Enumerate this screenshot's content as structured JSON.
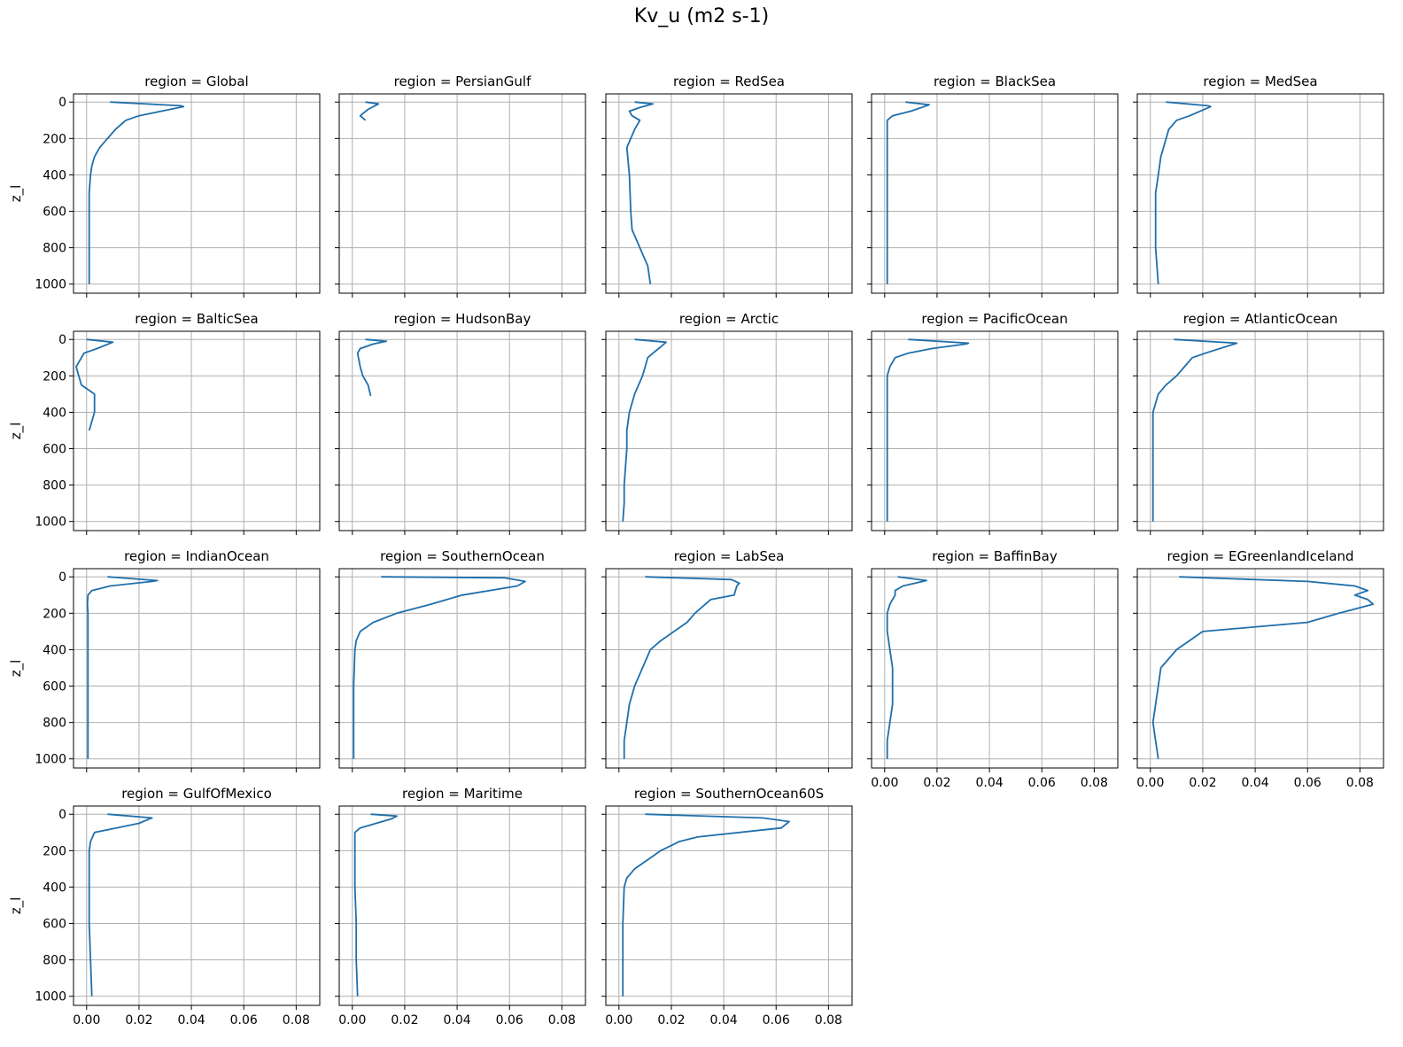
{
  "figure": {
    "title": "Kv_u (m2 s-1)"
  },
  "chart_data": {
    "type": "line",
    "layout": "facet-grid 4x5",
    "facet_prefix": "region = ",
    "ylabel": "z_l",
    "xlabel": "",
    "xlim": [
      -0.005,
      0.089
    ],
    "ylim": [
      1050,
      -45
    ],
    "xticks": [
      0.0,
      0.02,
      0.04,
      0.06,
      0.08
    ],
    "xtick_labels": [
      "0.00",
      "0.02",
      "0.04",
      "0.06",
      "0.08"
    ],
    "yticks": [
      0,
      200,
      400,
      600,
      800,
      1000
    ],
    "ytick_labels": [
      "0",
      "200",
      "400",
      "600",
      "800",
      "1000"
    ],
    "y_inverted": true,
    "grid": true,
    "line_color": "#1f6fab",
    "panels": [
      {
        "region": "Global",
        "points": [
          [
            0.009,
            0
          ],
          [
            0.036,
            20
          ],
          [
            0.037,
            25
          ],
          [
            0.02,
            75
          ],
          [
            0.015,
            100
          ],
          [
            0.011,
            150
          ],
          [
            0.008,
            200
          ],
          [
            0.005,
            250
          ],
          [
            0.003,
            300
          ],
          [
            0.002,
            350
          ],
          [
            0.0015,
            400
          ],
          [
            0.001,
            500
          ],
          [
            0.001,
            600
          ],
          [
            0.001,
            800
          ],
          [
            0.001,
            1000
          ]
        ]
      },
      {
        "region": "PersianGulf",
        "points": [
          [
            0.005,
            0
          ],
          [
            0.01,
            10
          ],
          [
            0.006,
            40
          ],
          [
            0.003,
            75
          ],
          [
            0.005,
            100
          ]
        ]
      },
      {
        "region": "RedSea",
        "points": [
          [
            0.006,
            0
          ],
          [
            0.013,
            10
          ],
          [
            0.008,
            30
          ],
          [
            0.004,
            50
          ],
          [
            0.005,
            75
          ],
          [
            0.008,
            100
          ],
          [
            0.006,
            150
          ],
          [
            0.003,
            250
          ],
          [
            0.004,
            400
          ],
          [
            0.0045,
            600
          ],
          [
            0.005,
            700
          ],
          [
            0.008,
            800
          ],
          [
            0.011,
            900
          ],
          [
            0.012,
            1000
          ]
        ]
      },
      {
        "region": "BlackSea",
        "points": [
          [
            0.008,
            0
          ],
          [
            0.017,
            15
          ],
          [
            0.01,
            50
          ],
          [
            0.003,
            75
          ],
          [
            0.001,
            100
          ],
          [
            0.001,
            200
          ],
          [
            0.001,
            400
          ],
          [
            0.001,
            600
          ],
          [
            0.001,
            800
          ],
          [
            0.001,
            1000
          ]
        ]
      },
      {
        "region": "MedSea",
        "points": [
          [
            0.006,
            0
          ],
          [
            0.022,
            20
          ],
          [
            0.023,
            25
          ],
          [
            0.015,
            75
          ],
          [
            0.01,
            100
          ],
          [
            0.007,
            150
          ],
          [
            0.005,
            250
          ],
          [
            0.004,
            300
          ],
          [
            0.003,
            400
          ],
          [
            0.002,
            500
          ],
          [
            0.002,
            600
          ],
          [
            0.002,
            700
          ],
          [
            0.002,
            800
          ],
          [
            0.003,
            1000
          ]
        ]
      },
      {
        "region": "BalticSea",
        "points": [
          [
            0.0,
            0
          ],
          [
            0.01,
            15
          ],
          [
            0.004,
            50
          ],
          [
            -0.001,
            75
          ],
          [
            -0.002,
            100
          ],
          [
            -0.004,
            150
          ],
          [
            -0.003,
            200
          ],
          [
            -0.002,
            250
          ],
          [
            0.003,
            300
          ],
          [
            0.003,
            400
          ],
          [
            0.001,
            500
          ]
        ]
      },
      {
        "region": "HudsonBay",
        "points": [
          [
            0.005,
            0
          ],
          [
            0.013,
            10
          ],
          [
            0.008,
            25
          ],
          [
            0.003,
            50
          ],
          [
            0.002,
            75
          ],
          [
            0.003,
            150
          ],
          [
            0.004,
            200
          ],
          [
            0.006,
            250
          ],
          [
            0.007,
            310
          ]
        ]
      },
      {
        "region": "Arctic",
        "points": [
          [
            0.006,
            0
          ],
          [
            0.018,
            15
          ],
          [
            0.016,
            40
          ],
          [
            0.013,
            75
          ],
          [
            0.011,
            100
          ],
          [
            0.01,
            150
          ],
          [
            0.009,
            200
          ],
          [
            0.006,
            300
          ],
          [
            0.004,
            400
          ],
          [
            0.003,
            500
          ],
          [
            0.003,
            600
          ],
          [
            0.002,
            800
          ],
          [
            0.002,
            900
          ],
          [
            0.0015,
            1000
          ]
        ]
      },
      {
        "region": "PacificOcean",
        "points": [
          [
            0.009,
            0
          ],
          [
            0.032,
            20
          ],
          [
            0.031,
            25
          ],
          [
            0.018,
            50
          ],
          [
            0.009,
            75
          ],
          [
            0.004,
            100
          ],
          [
            0.002,
            150
          ],
          [
            0.001,
            200
          ],
          [
            0.001,
            300
          ],
          [
            0.001,
            400
          ],
          [
            0.001,
            600
          ],
          [
            0.001,
            800
          ],
          [
            0.001,
            1000
          ]
        ]
      },
      {
        "region": "AtlanticOcean",
        "points": [
          [
            0.009,
            0
          ],
          [
            0.033,
            20
          ],
          [
            0.032,
            25
          ],
          [
            0.021,
            75
          ],
          [
            0.016,
            100
          ],
          [
            0.013,
            150
          ],
          [
            0.01,
            200
          ],
          [
            0.006,
            250
          ],
          [
            0.003,
            300
          ],
          [
            0.002,
            350
          ],
          [
            0.001,
            400
          ],
          [
            0.001,
            500
          ],
          [
            0.001,
            600
          ],
          [
            0.001,
            800
          ],
          [
            0.001,
            1000
          ]
        ]
      },
      {
        "region": "IndianOcean",
        "points": [
          [
            0.008,
            0
          ],
          [
            0.027,
            20
          ],
          [
            0.025,
            25
          ],
          [
            0.009,
            50
          ],
          [
            0.002,
            75
          ],
          [
            0.0005,
            100
          ],
          [
            0.0003,
            150
          ],
          [
            0.0005,
            200
          ],
          [
            0.0005,
            400
          ],
          [
            0.0005,
            600
          ],
          [
            0.0005,
            800
          ],
          [
            0.0005,
            1000
          ]
        ]
      },
      {
        "region": "SouthernOcean",
        "points": [
          [
            0.011,
            0
          ],
          [
            0.058,
            5
          ],
          [
            0.066,
            25
          ],
          [
            0.063,
            50
          ],
          [
            0.042,
            100
          ],
          [
            0.03,
            150
          ],
          [
            0.017,
            200
          ],
          [
            0.008,
            250
          ],
          [
            0.003,
            300
          ],
          [
            0.0015,
            350
          ],
          [
            0.001,
            400
          ],
          [
            0.0005,
            600
          ],
          [
            0.0005,
            800
          ],
          [
            0.0005,
            1000
          ]
        ]
      },
      {
        "region": "LabSea",
        "points": [
          [
            0.01,
            0
          ],
          [
            0.043,
            15
          ],
          [
            0.046,
            35
          ],
          [
            0.045,
            50
          ],
          [
            0.044,
            100
          ],
          [
            0.035,
            125
          ],
          [
            0.029,
            200
          ],
          [
            0.026,
            250
          ],
          [
            0.016,
            350
          ],
          [
            0.012,
            400
          ],
          [
            0.009,
            500
          ],
          [
            0.006,
            600
          ],
          [
            0.004,
            700
          ],
          [
            0.003,
            800
          ],
          [
            0.002,
            900
          ],
          [
            0.002,
            1000
          ]
        ]
      },
      {
        "region": "BaffinBay",
        "points": [
          [
            0.005,
            0
          ],
          [
            0.016,
            20
          ],
          [
            0.007,
            50
          ],
          [
            0.004,
            75
          ],
          [
            0.004,
            100
          ],
          [
            0.002,
            150
          ],
          [
            0.001,
            200
          ],
          [
            0.001,
            300
          ],
          [
            0.002,
            400
          ],
          [
            0.003,
            500
          ],
          [
            0.003,
            600
          ],
          [
            0.003,
            700
          ],
          [
            0.002,
            800
          ],
          [
            0.001,
            900
          ],
          [
            0.001,
            1000
          ]
        ]
      },
      {
        "region": "EGreenlandIceland",
        "points": [
          [
            0.011,
            0
          ],
          [
            0.06,
            25
          ],
          [
            0.078,
            50
          ],
          [
            0.083,
            75
          ],
          [
            0.078,
            100
          ],
          [
            0.083,
            125
          ],
          [
            0.085,
            150
          ],
          [
            0.072,
            200
          ],
          [
            0.06,
            250
          ],
          [
            0.02,
            300
          ],
          [
            0.01,
            400
          ],
          [
            0.004,
            500
          ],
          [
            0.003,
            600
          ],
          [
            0.002,
            700
          ],
          [
            0.001,
            800
          ],
          [
            0.002,
            900
          ],
          [
            0.003,
            1000
          ]
        ]
      },
      {
        "region": "GulfOfMexico",
        "points": [
          [
            0.008,
            0
          ],
          [
            0.025,
            20
          ],
          [
            0.024,
            25
          ],
          [
            0.02,
            50
          ],
          [
            0.003,
            100
          ],
          [
            0.0015,
            150
          ],
          [
            0.001,
            200
          ],
          [
            0.001,
            400
          ],
          [
            0.001,
            600
          ],
          [
            0.0015,
            800
          ],
          [
            0.002,
            1000
          ]
        ]
      },
      {
        "region": "Maritime",
        "points": [
          [
            0.007,
            0
          ],
          [
            0.017,
            10
          ],
          [
            0.015,
            25
          ],
          [
            0.003,
            75
          ],
          [
            0.001,
            100
          ],
          [
            0.001,
            200
          ],
          [
            0.001,
            400
          ],
          [
            0.0015,
            600
          ],
          [
            0.0015,
            800
          ],
          [
            0.002,
            1000
          ]
        ]
      },
      {
        "region": "SouthernOcean60S",
        "points": [
          [
            0.01,
            0
          ],
          [
            0.055,
            20
          ],
          [
            0.065,
            40
          ],
          [
            0.062,
            75
          ],
          [
            0.03,
            125
          ],
          [
            0.023,
            150
          ],
          [
            0.016,
            200
          ],
          [
            0.011,
            250
          ],
          [
            0.006,
            300
          ],
          [
            0.003,
            350
          ],
          [
            0.002,
            400
          ],
          [
            0.0015,
            600
          ],
          [
            0.0015,
            800
          ],
          [
            0.0015,
            1000
          ]
        ]
      }
    ]
  }
}
